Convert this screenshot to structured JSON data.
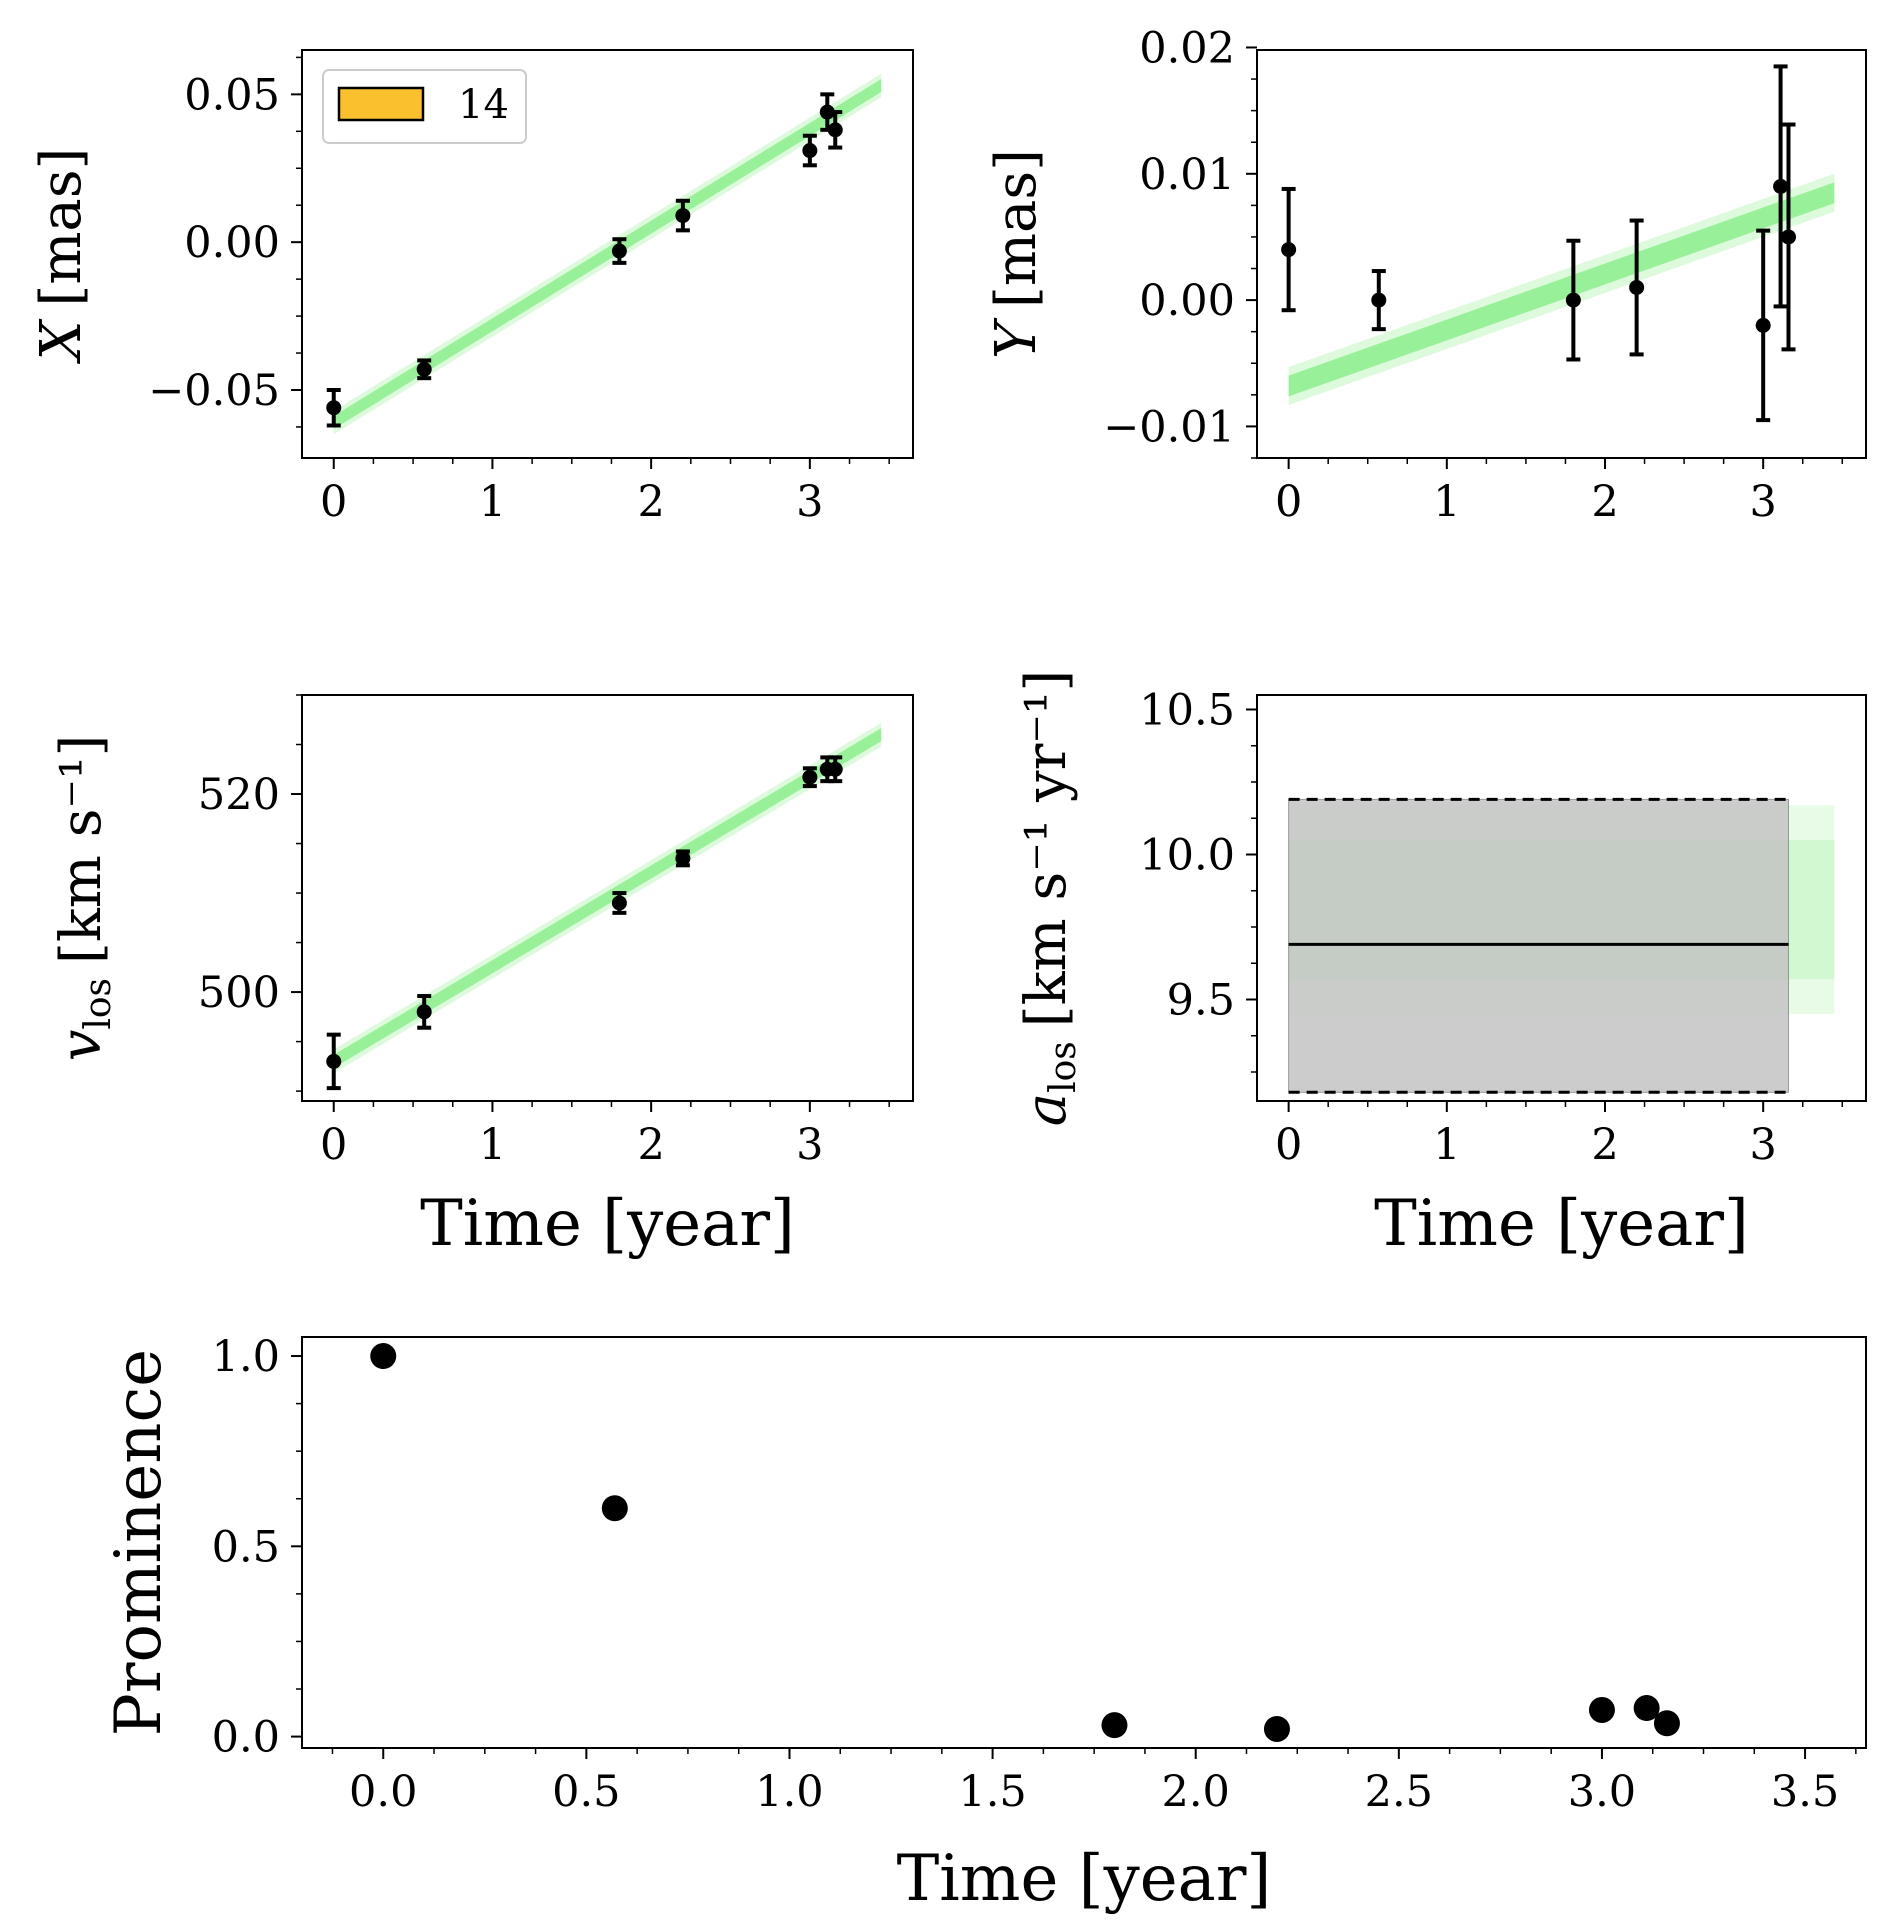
{
  "figure": {
    "legend_label": "14",
    "colors": {
      "fit": "#90ee90",
      "points": "#000000",
      "band": "#c4c4c4",
      "legend_patch": "#fbc02d"
    }
  },
  "chart_data": [
    {
      "type": "scatter",
      "panel": "x",
      "ylabel_symbol": "X",
      "ylabel_unit": "[mas]",
      "xlabel": "",
      "xlim": [
        -0.2,
        3.65
      ],
      "ylim": [
        -0.073,
        0.065
      ],
      "xticks": [
        0,
        1,
        2,
        3
      ],
      "xtick_labels": [
        "0",
        "1",
        "2",
        "3"
      ],
      "yticks": [
        -0.05,
        0.0,
        0.05
      ],
      "ytick_labels": [
        "−0.05",
        "0.00",
        "0.05"
      ],
      "fit": {
        "x0": 0,
        "x1": 3.45,
        "y0": -0.061,
        "y1": 0.053,
        "halfwidth": 0.004
      },
      "points": [
        {
          "x": 0.0,
          "y": -0.056,
          "err": 0.006
        },
        {
          "x": 0.57,
          "y": -0.043,
          "err": 0.003
        },
        {
          "x": 1.8,
          "y": -0.003,
          "err": 0.004
        },
        {
          "x": 2.2,
          "y": 0.009,
          "err": 0.005
        },
        {
          "x": 3.0,
          "y": 0.031,
          "err": 0.005
        },
        {
          "x": 3.11,
          "y": 0.044,
          "err": 0.006
        },
        {
          "x": 3.16,
          "y": 0.038,
          "err": 0.006
        }
      ]
    },
    {
      "type": "scatter",
      "panel": "y",
      "ylabel_symbol": "Y",
      "ylabel_unit": "[mas]",
      "xlabel": "",
      "xlim": [
        -0.2,
        3.65
      ],
      "ylim": [
        -0.0125,
        0.0198
      ],
      "xticks": [
        0,
        1,
        2,
        3
      ],
      "xtick_labels": [
        "0",
        "1",
        "2",
        "3"
      ],
      "yticks": [
        -0.01,
        0.0,
        0.01,
        0.02
      ],
      "ytick_labels": [
        "−0.01",
        "0.00",
        "0.01",
        "0.02"
      ],
      "fit": {
        "x0": 0,
        "x1": 3.45,
        "y0": -0.0068,
        "y1": 0.0085,
        "halfwidth": 0.0015
      },
      "points": [
        {
          "x": 0.0,
          "y": 0.004,
          "err": 0.0048
        },
        {
          "x": 0.57,
          "y": 0.0,
          "err": 0.0023
        },
        {
          "x": 1.8,
          "y": 0.0,
          "err": 0.0047
        },
        {
          "x": 2.2,
          "y": 0.001,
          "err": 0.0053
        },
        {
          "x": 3.0,
          "y": -0.002,
          "err": 0.0075
        },
        {
          "x": 3.11,
          "y": 0.009,
          "err": 0.0095
        },
        {
          "x": 3.16,
          "y": 0.005,
          "err": 0.0089
        }
      ]
    },
    {
      "type": "scatter",
      "panel": "vlos",
      "ylabel_symbol": "v",
      "ylabel_sub": "los",
      "ylabel_unit": "[km s⁻¹]",
      "xlabel": "Time [year]",
      "xlim": [
        -0.2,
        3.65
      ],
      "ylim": [
        489.0,
        530.0
      ],
      "xticks": [
        0,
        1,
        2,
        3
      ],
      "xtick_labels": [
        "0",
        "1",
        "2",
        "3"
      ],
      "yticks": [
        500,
        520
      ],
      "ytick_labels": [
        "500",
        "520"
      ],
      "fit": {
        "x0": 0,
        "x1": 3.45,
        "y0": 493.0,
        "y1": 526.0,
        "halfwidth": 1.2
      },
      "points": [
        {
          "x": 0.0,
          "y": 493.0,
          "err": 2.7
        },
        {
          "x": 0.57,
          "y": 498.0,
          "err": 1.6
        },
        {
          "x": 1.8,
          "y": 509.0,
          "err": 1.0
        },
        {
          "x": 2.2,
          "y": 513.5,
          "err": 0.7
        },
        {
          "x": 3.0,
          "y": 521.7,
          "err": 0.9
        },
        {
          "x": 3.11,
          "y": 522.5,
          "err": 1.2
        },
        {
          "x": 3.16,
          "y": 522.5,
          "err": 1.2
        }
      ]
    },
    {
      "type": "line",
      "panel": "alos",
      "ylabel_symbol": "a",
      "ylabel_sub": "los",
      "ylabel_unit": "[km s⁻¹ yr⁻¹]",
      "xlabel": "Time [year]",
      "xlim": [
        -0.2,
        3.65
      ],
      "ylim": [
        9.15,
        10.55
      ],
      "xticks": [
        0,
        1,
        2,
        3
      ],
      "xtick_labels": [
        "0",
        "1",
        "2",
        "3"
      ],
      "yticks": [
        9.5,
        10.0,
        10.5
      ],
      "ytick_labels": [
        "9.5",
        "10.0",
        "10.5"
      ],
      "band": {
        "x0": 0,
        "x1": 3.16,
        "y_low": 9.18,
        "y_high": 10.19,
        "mean": 9.69
      },
      "fit_spread": {
        "x0": 0,
        "x1": 3.45,
        "y_low": 9.45,
        "y_high": 10.17
      }
    },
    {
      "type": "scatter",
      "panel": "prominence",
      "ylabel": "Prominence",
      "xlabel": "Time [year]",
      "xlim": [
        -0.2,
        3.65
      ],
      "ylim": [
        -0.03,
        1.05
      ],
      "xticks": [
        0.0,
        0.5,
        1.0,
        1.5,
        2.0,
        2.5,
        3.0,
        3.5
      ],
      "xtick_labels": [
        "0.0",
        "0.5",
        "1.0",
        "1.5",
        "2.0",
        "2.5",
        "3.0",
        "3.5"
      ],
      "yticks": [
        0.0,
        0.5,
        1.0
      ],
      "ytick_labels": [
        "0.0",
        "0.5",
        "1.0"
      ],
      "points": [
        {
          "x": 0.0,
          "y": 1.0
        },
        {
          "x": 0.57,
          "y": 0.6
        },
        {
          "x": 1.8,
          "y": 0.03
        },
        {
          "x": 2.2,
          "y": 0.02
        },
        {
          "x": 3.0,
          "y": 0.07
        },
        {
          "x": 3.11,
          "y": 0.075
        },
        {
          "x": 3.16,
          "y": 0.035
        }
      ]
    }
  ]
}
